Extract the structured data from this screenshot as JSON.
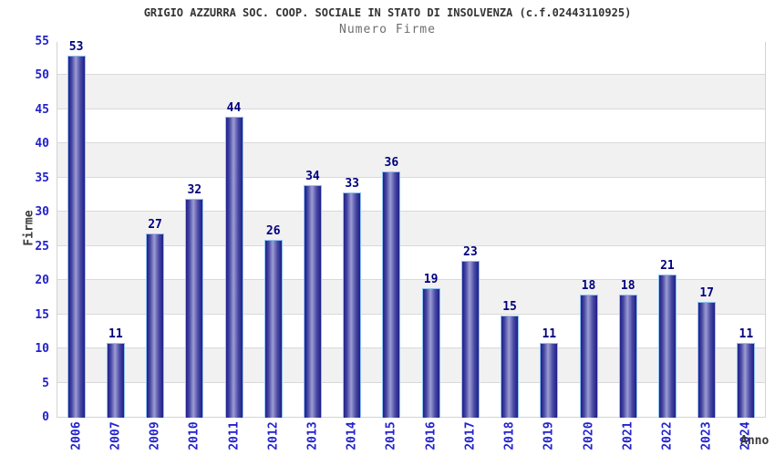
{
  "header": {
    "title": "GRIGIO AZZURRA SOC. COOP. SOCIALE IN STATO DI INSOLVENZA (c.f.02443110925)",
    "subtitle": "Numero Firme"
  },
  "chart_data": {
    "type": "bar",
    "title": "GRIGIO AZZURRA SOC. COOP. SOCIALE IN STATO DI INSOLVENZA (c.f.02443110925)",
    "subtitle": "Numero Firme",
    "xlabel": "Anno",
    "ylabel": "Firme",
    "categories": [
      "2006",
      "2007",
      "2009",
      "2010",
      "2011",
      "2012",
      "2013",
      "2014",
      "2015",
      "2016",
      "2017",
      "2018",
      "2019",
      "2020",
      "2021",
      "2022",
      "2023",
      "2024"
    ],
    "values": [
      53,
      11,
      27,
      32,
      44,
      26,
      34,
      33,
      36,
      19,
      23,
      15,
      11,
      18,
      18,
      21,
      17,
      11
    ],
    "ylim": [
      0,
      55
    ],
    "yticks": [
      0,
      5,
      10,
      15,
      20,
      25,
      30,
      35,
      40,
      45,
      50,
      55
    ],
    "grid": true,
    "legend_position": "none",
    "value_labels_shown": true,
    "colors": {
      "bar_edge": "#1f1f8a",
      "bar_quarter": "#4646a2",
      "bar_mid": "#9c9cd4",
      "bar_outline": "#8ec4ee",
      "value_label": "#00007e",
      "tick_label": "#2323cc",
      "axis_title": "#3a3a3a",
      "title": "#333333",
      "subtitle": "#6e6e6e",
      "band_gray": "#f1f1f1",
      "band_white": "#ffffff",
      "gridline": "#d9d9d9",
      "plot_border": "#d3d3d3"
    }
  }
}
